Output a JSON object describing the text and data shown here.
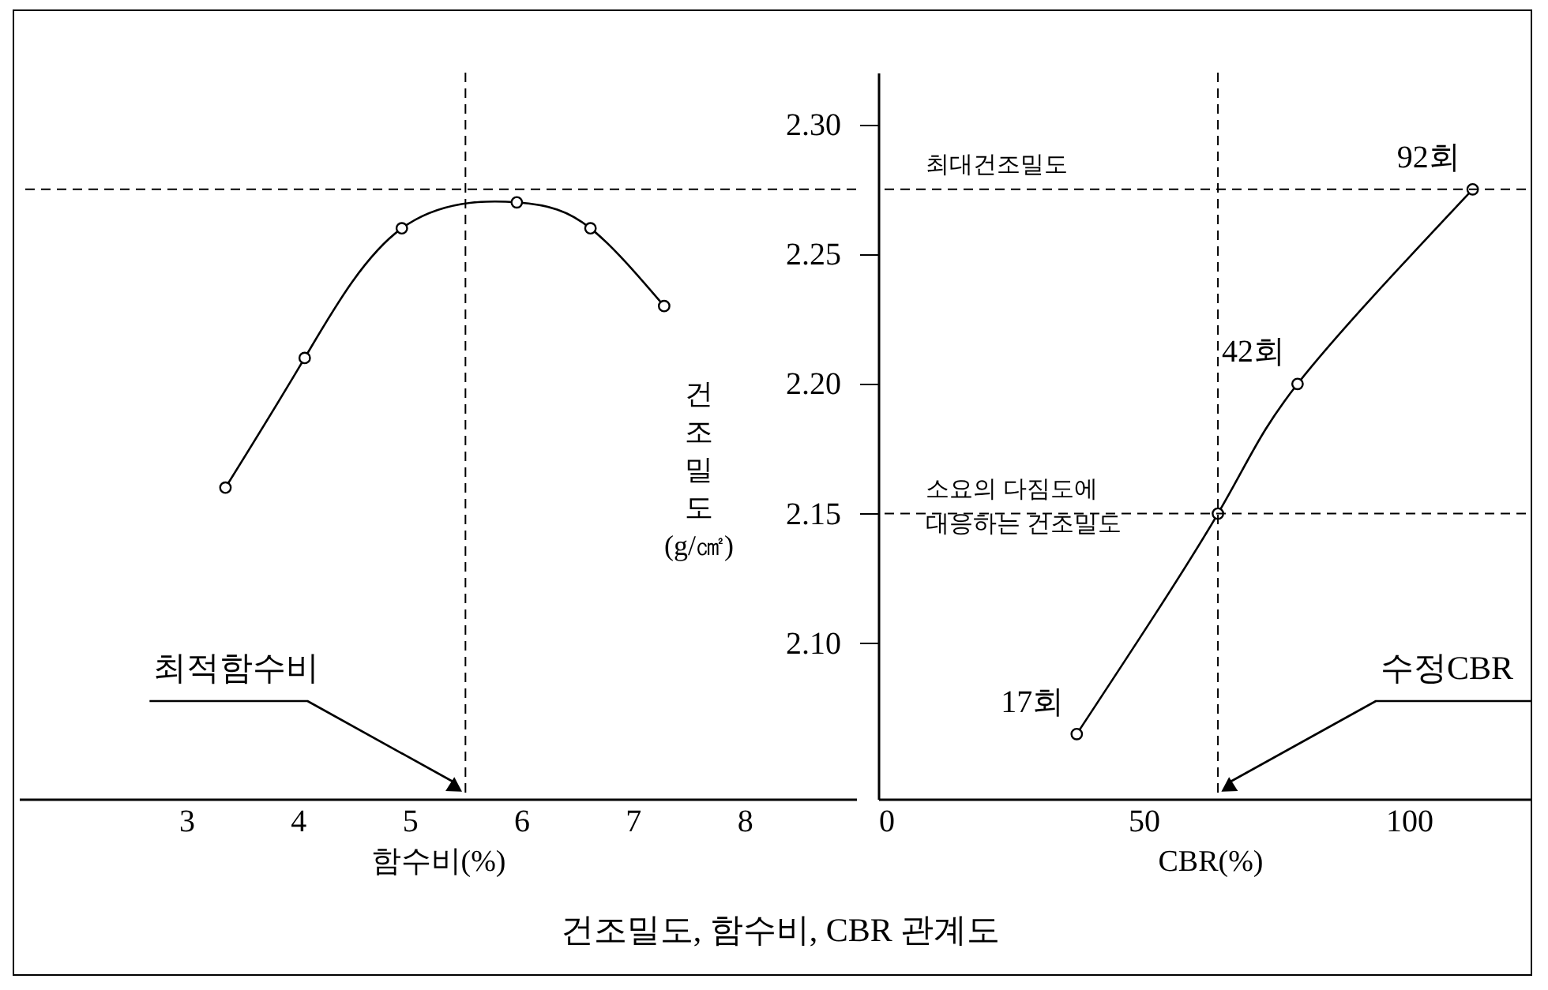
{
  "chart_data": [
    {
      "type": "line",
      "title": "건조밀도, 함수비, CBR 관계도",
      "xlabel": "함수비(%)",
      "ylabel": "건조밀도(g/㎠)",
      "x": [
        3.35,
        4.06,
        4.93,
        5.96,
        6.62,
        7.28
      ],
      "series": [
        {
          "color": "#000000",
          "values": [
            2.16,
            2.21,
            2.26,
            2.27,
            2.26,
            2.23
          ]
        }
      ],
      "xlim": [
        1.5,
        9
      ],
      "xticks": [
        3,
        4,
        5,
        6,
        7,
        8
      ],
      "ylim": [
        2.04,
        2.32
      ],
      "yticks": [
        {
          "value": 2.1,
          "label": "2.10"
        },
        {
          "value": 2.15,
          "label": "2.15"
        },
        {
          "value": 2.2,
          "label": "2.20"
        },
        {
          "value": 2.25,
          "label": "2.25"
        },
        {
          "value": 2.3,
          "label": "2.30"
        }
      ],
      "marker": "circle",
      "ref_lines": [
        {
          "axis": "x",
          "value": 5.5,
          "line_style": "dashed",
          "color": "#000000"
        },
        {
          "axis": "y",
          "value": 2.275,
          "line_style": "dashed",
          "color": "#000000"
        }
      ],
      "annotations": [
        "최적함수비"
      ]
    },
    {
      "type": "line",
      "xlabel": "CBR(%)",
      "x": [
        37.4,
        64,
        79,
        112
      ],
      "series": [
        {
          "color": "#000000",
          "values": [
            2.065,
            2.15,
            2.2,
            2.275
          ]
        }
      ],
      "xlim": [
        0,
        125
      ],
      "xticks": [
        0,
        50,
        100
      ],
      "ylim": [
        2.04,
        2.32
      ],
      "yticks": [
        2.1,
        2.15,
        2.2,
        2.25,
        2.3
      ],
      "tick_labels": "x",
      "marker": "circle",
      "ref_lines": [
        {
          "axis": "y",
          "value": 2.275,
          "label": "최대건조밀도",
          "line_style": "dashed",
          "color": "#000000"
        },
        {
          "axis": "y",
          "value": 2.15,
          "label": "소요의 다짐도에\n대응하는 건조밀도",
          "line_style": "dashed",
          "color": "#000000"
        },
        {
          "axis": "x",
          "value": 64,
          "line_style": "dashed",
          "color": "#000000"
        }
      ],
      "annotations": [
        {
          "text": "17회",
          "x": 37.4,
          "y": 2.065
        },
        {
          "text": "42회",
          "x": 79,
          "y": 2.2
        },
        {
          "text": "92회",
          "x": 112,
          "y": 2.275
        },
        "수정CBR"
      ]
    }
  ]
}
